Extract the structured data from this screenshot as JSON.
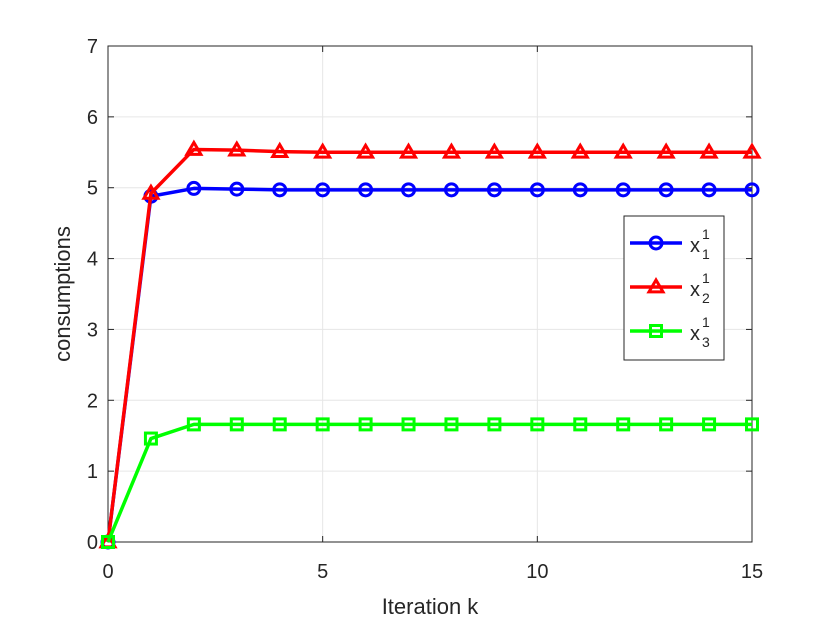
{
  "chart_data": {
    "type": "line",
    "title": "",
    "xlabel": "Iteration k",
    "ylabel": "consumptions",
    "xlim": [
      0,
      15
    ],
    "ylim": [
      0,
      7
    ],
    "x_ticks": [
      0,
      5,
      10,
      15
    ],
    "y_ticks": [
      0,
      1,
      2,
      3,
      4,
      5,
      6,
      7
    ],
    "grid": true,
    "legend_position": "right",
    "x": [
      0,
      1,
      2,
      3,
      4,
      5,
      6,
      7,
      8,
      9,
      10,
      11,
      12,
      13,
      14,
      15
    ],
    "series": [
      {
        "name": "x",
        "sub": "1",
        "sup": "1",
        "color": "#0000ff",
        "marker": "circle",
        "values": [
          0,
          4.88,
          4.99,
          4.98,
          4.97,
          4.97,
          4.97,
          4.97,
          4.97,
          4.97,
          4.97,
          4.97,
          4.97,
          4.97,
          4.97,
          4.97
        ]
      },
      {
        "name": "x",
        "sub": "2",
        "sup": "1",
        "color": "#ff0000",
        "marker": "triangle",
        "values": [
          0,
          4.92,
          5.54,
          5.53,
          5.51,
          5.5,
          5.5,
          5.5,
          5.5,
          5.5,
          5.5,
          5.5,
          5.5,
          5.5,
          5.5,
          5.5
        ]
      },
      {
        "name": "x",
        "sub": "3",
        "sup": "1",
        "color": "#00ff00",
        "marker": "square",
        "values": [
          0,
          1.46,
          1.66,
          1.66,
          1.66,
          1.66,
          1.66,
          1.66,
          1.66,
          1.66,
          1.66,
          1.66,
          1.66,
          1.66,
          1.66,
          1.66
        ]
      }
    ]
  }
}
